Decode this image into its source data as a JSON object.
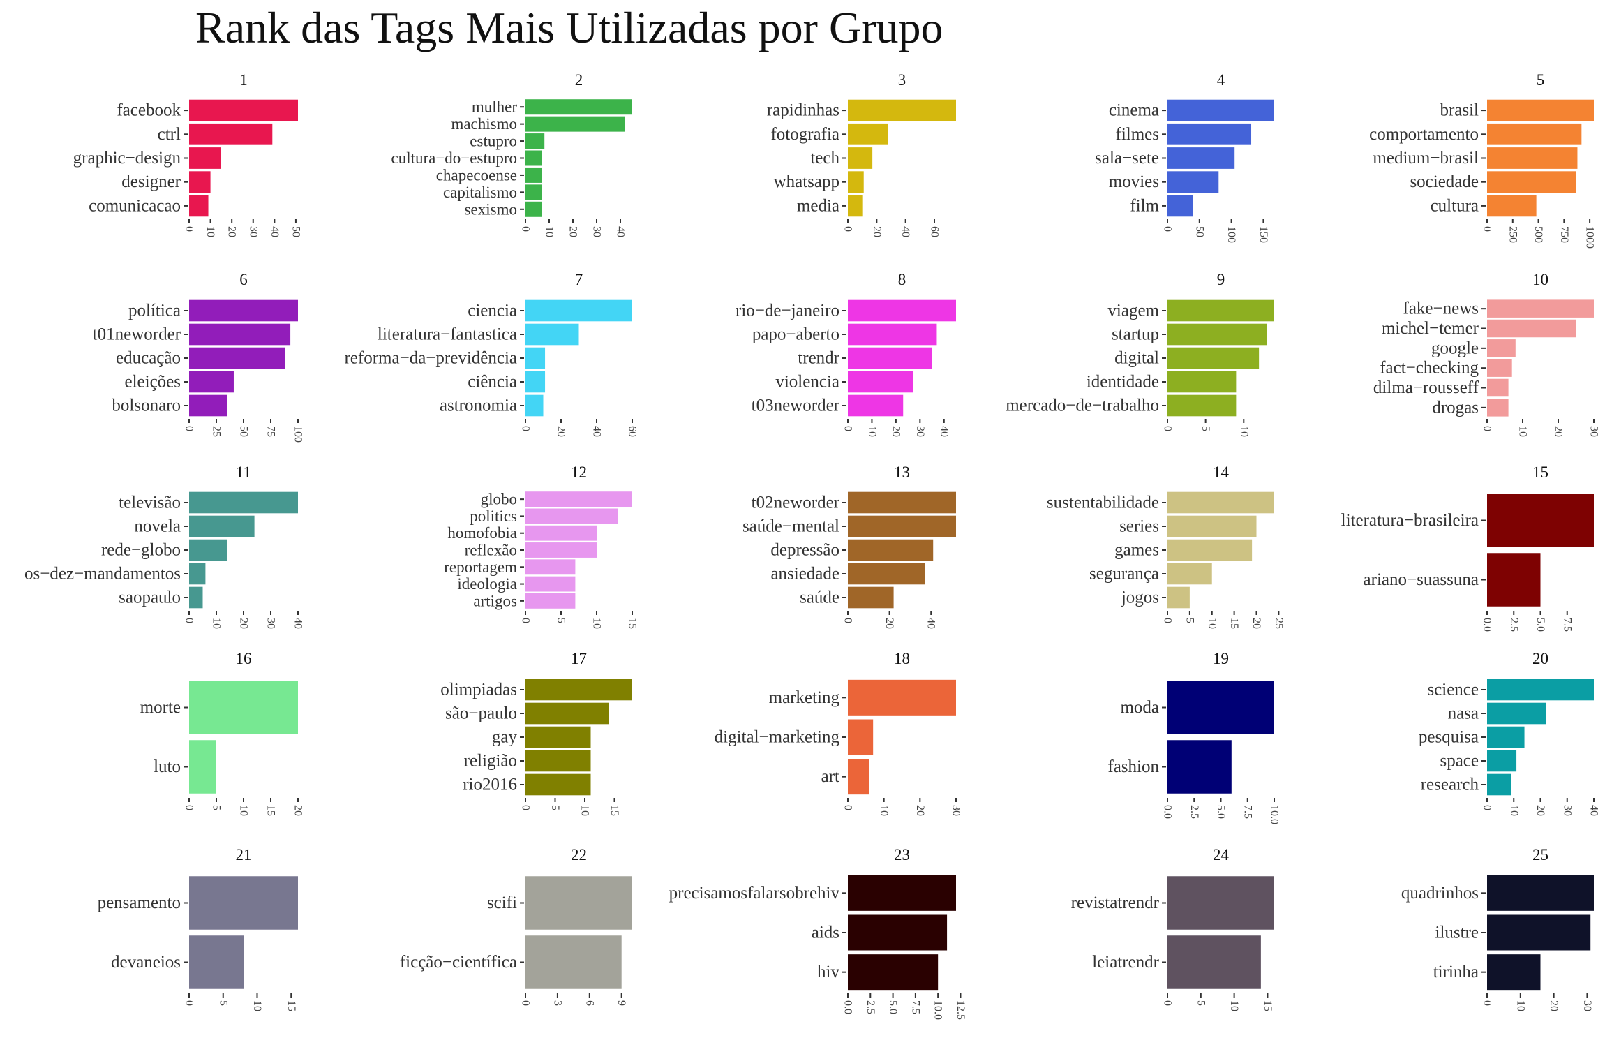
{
  "title": "Rank das Tags Mais Utilizadas por Grupo",
  "chart_data": [
    {
      "type": "bar",
      "orientation": "horizontal",
      "title": "1",
      "color": "#E8174F",
      "categories": [
        "facebook",
        "ctrl",
        "graphic−design",
        "designer",
        "comunicacao"
      ],
      "values": [
        51,
        39,
        15,
        10,
        9
      ],
      "xticks": [
        0,
        10,
        20,
        30,
        40,
        50
      ],
      "xlim": [
        0,
        51
      ]
    },
    {
      "type": "bar",
      "orientation": "horizontal",
      "title": "2",
      "color": "#3CB34A",
      "categories": [
        "mulher",
        "machismo",
        "estupro",
        "cultura−do−estupro",
        "chapecoense",
        "capitalismo",
        "sexismo"
      ],
      "values": [
        45,
        42,
        8,
        7,
        7,
        7,
        7
      ],
      "xticks": [
        0,
        10,
        20,
        30,
        40
      ],
      "xlim": [
        0,
        45
      ]
    },
    {
      "type": "bar",
      "orientation": "horizontal",
      "title": "3",
      "color": "#D4B80E",
      "categories": [
        "rapidinhas",
        "fotografia",
        "tech",
        "whatsapp",
        "media"
      ],
      "values": [
        75,
        28,
        17,
        11,
        10
      ],
      "xticks": [
        0,
        20,
        40,
        60
      ],
      "xlim": [
        0,
        75
      ]
    },
    {
      "type": "bar",
      "orientation": "horizontal",
      "title": "4",
      "color": "#4463D8",
      "categories": [
        "cinema",
        "filmes",
        "sala−sete",
        "movies",
        "film"
      ],
      "values": [
        167,
        131,
        105,
        80,
        40
      ],
      "xticks": [
        0,
        50,
        100,
        150
      ],
      "xlim": [
        0,
        167
      ]
    },
    {
      "type": "bar",
      "orientation": "horizontal",
      "title": "5",
      "color": "#F48332",
      "categories": [
        "brasil",
        "comportamento",
        "medium−brasil",
        "sociedade",
        "cultura"
      ],
      "values": [
        1040,
        920,
        880,
        870,
        480
      ],
      "xticks": [
        0,
        250,
        500,
        750,
        1000
      ],
      "xlim": [
        0,
        1040
      ]
    },
    {
      "type": "bar",
      "orientation": "horizontal",
      "title": "6",
      "color": "#921DBA",
      "categories": [
        "política",
        "t01neworder",
        "educação",
        "eleições",
        "bolsonaro"
      ],
      "values": [
        100,
        93,
        88,
        41,
        35
      ],
      "xticks": [
        0,
        25,
        50,
        75,
        100
      ],
      "xlim": [
        0,
        100
      ]
    },
    {
      "type": "bar",
      "orientation": "horizontal",
      "title": "7",
      "color": "#43D5F5",
      "categories": [
        "ciencia",
        "literatura−fantastica",
        "reforma−da−previdência",
        "ciência",
        "astronomia"
      ],
      "values": [
        60,
        30,
        11,
        11,
        10
      ],
      "xticks": [
        0,
        20,
        40,
        60
      ],
      "xlim": [
        0,
        60
      ]
    },
    {
      "type": "bar",
      "orientation": "horizontal",
      "title": "8",
      "color": "#EE36E5",
      "categories": [
        "rio−de−janeiro",
        "papo−aberto",
        "trendr",
        "violencia",
        "t03neworder"
      ],
      "values": [
        45,
        37,
        35,
        27,
        23
      ],
      "xticks": [
        0,
        10,
        20,
        30,
        40
      ],
      "xlim": [
        0,
        45
      ]
    },
    {
      "type": "bar",
      "orientation": "horizontal",
      "title": "9",
      "color": "#8DAF21",
      "categories": [
        "viagem",
        "startup",
        "digital",
        "identidade",
        "mercado−de−trabalho"
      ],
      "values": [
        14,
        13,
        12,
        9,
        9
      ],
      "xticks": [
        0,
        5,
        10
      ],
      "xlim": [
        0,
        14
      ]
    },
    {
      "type": "bar",
      "orientation": "horizontal",
      "title": "10",
      "color": "#F29B9B",
      "categories": [
        "fake−news",
        "michel−temer",
        "google",
        "fact−checking",
        "dilma−rousseff",
        "drogas"
      ],
      "values": [
        30,
        25,
        8,
        7,
        6,
        6
      ],
      "xticks": [
        0,
        10,
        20,
        30
      ],
      "xlim": [
        0,
        30
      ]
    },
    {
      "type": "bar",
      "orientation": "horizontal",
      "title": "11",
      "color": "#479890",
      "categories": [
        "televisão",
        "novela",
        "rede−globo",
        "os−dez−mandamentos",
        "saopaulo"
      ],
      "values": [
        40,
        24,
        14,
        6,
        5
      ],
      "xticks": [
        0,
        10,
        20,
        30,
        40
      ],
      "xlim": [
        0,
        40
      ]
    },
    {
      "type": "bar",
      "orientation": "horizontal",
      "title": "12",
      "color": "#E797EF",
      "categories": [
        "globo",
        "politics",
        "homofobia",
        "reflexão",
        "reportagem",
        "ideologia",
        "artigos"
      ],
      "values": [
        15,
        13,
        10,
        10,
        7,
        7,
        7
      ],
      "xticks": [
        0,
        5,
        10,
        15
      ],
      "xlim": [
        0,
        15
      ]
    },
    {
      "type": "bar",
      "orientation": "horizontal",
      "title": "13",
      "color": "#A06628",
      "categories": [
        "t02neworder",
        "saúde−mental",
        "depressão",
        "ansiedade",
        "saúde"
      ],
      "values": [
        52,
        52,
        41,
        37,
        22
      ],
      "xticks": [
        0,
        20,
        40
      ],
      "xlim": [
        0,
        52
      ]
    },
    {
      "type": "bar",
      "orientation": "horizontal",
      "title": "14",
      "color": "#CDC283",
      "categories": [
        "sustentabilidade",
        "series",
        "games",
        "segurança",
        "jogos"
      ],
      "values": [
        24,
        20,
        19,
        10,
        5
      ],
      "xticks": [
        0,
        5,
        10,
        15,
        20,
        25
      ],
      "xlim": [
        0,
        24
      ]
    },
    {
      "type": "bar",
      "orientation": "horizontal",
      "title": "15",
      "color": "#7E0202",
      "categories": [
        "literatura−brasileira",
        "ariano−suassuna"
      ],
      "values": [
        10,
        5
      ],
      "xticks": [
        0.0,
        2.5,
        5.0,
        7.5
      ],
      "xtick_labels": [
        "0.0",
        "2.5",
        "5.0",
        "7.5"
      ],
      "xlim": [
        0,
        10
      ]
    },
    {
      "type": "bar",
      "orientation": "horizontal",
      "title": "16",
      "color": "#77E892",
      "categories": [
        "morte",
        "luto"
      ],
      "values": [
        20,
        5
      ],
      "xticks": [
        0,
        5,
        10,
        15,
        20
      ],
      "xlim": [
        0,
        20
      ]
    },
    {
      "type": "bar",
      "orientation": "horizontal",
      "title": "17",
      "color": "#808000",
      "categories": [
        "olimpiadas",
        "são−paulo",
        "gay",
        "religião",
        "rio2016"
      ],
      "values": [
        18,
        14,
        11,
        11,
        11
      ],
      "xticks": [
        0,
        5,
        10,
        15
      ],
      "xlim": [
        0,
        18
      ]
    },
    {
      "type": "bar",
      "orientation": "horizontal",
      "title": "18",
      "color": "#EB6539",
      "categories": [
        "marketing",
        "digital−marketing",
        "art"
      ],
      "values": [
        30,
        7,
        6
      ],
      "xticks": [
        0,
        10,
        20,
        30
      ],
      "xlim": [
        0,
        30
      ]
    },
    {
      "type": "bar",
      "orientation": "horizontal",
      "title": "19",
      "color": "#000075",
      "categories": [
        "moda",
        "fashion"
      ],
      "values": [
        10,
        6
      ],
      "xticks": [
        0.0,
        2.5,
        5.0,
        7.5,
        10.0
      ],
      "xtick_labels": [
        "0.0",
        "2.5",
        "5.0",
        "7.5",
        "10.0"
      ],
      "xlim": [
        0,
        10
      ]
    },
    {
      "type": "bar",
      "orientation": "horizontal",
      "title": "20",
      "color": "#0B9EA4",
      "categories": [
        "science",
        "nasa",
        "pesquisa",
        "space",
        "research"
      ],
      "values": [
        40,
        22,
        14,
        11,
        9
      ],
      "xticks": [
        0,
        10,
        20,
        30,
        40
      ],
      "xlim": [
        0,
        40
      ]
    },
    {
      "type": "bar",
      "orientation": "horizontal",
      "title": "21",
      "color": "#787790",
      "categories": [
        "pensamento",
        "devaneios"
      ],
      "values": [
        16,
        8
      ],
      "xticks": [
        0,
        5,
        10,
        15
      ],
      "xlim": [
        0,
        16
      ]
    },
    {
      "type": "bar",
      "orientation": "horizontal",
      "title": "22",
      "color": "#A3A39A",
      "categories": [
        "scifi",
        "ficção−científica"
      ],
      "values": [
        10,
        9
      ],
      "xticks": [
        0,
        3,
        6,
        9
      ],
      "xlim": [
        0,
        10
      ]
    },
    {
      "type": "bar",
      "orientation": "horizontal",
      "title": "23",
      "color": "#2A0101",
      "categories": [
        "precisamosfalarsobrehiv",
        "aids",
        "hiv"
      ],
      "values": [
        12,
        11,
        10
      ],
      "xticks": [
        0.0,
        2.5,
        5.0,
        7.5,
        10.0,
        12.5
      ],
      "xtick_labels": [
        "0.0",
        "2.5",
        "5.0",
        "7.5",
        "10.0",
        "12.5"
      ],
      "xlim": [
        0,
        12
      ]
    },
    {
      "type": "bar",
      "orientation": "horizontal",
      "title": "24",
      "color": "#5F5260",
      "categories": [
        "revistatrendr",
        "leiatrendr"
      ],
      "values": [
        16,
        14
      ],
      "xticks": [
        0,
        5,
        10,
        15
      ],
      "xlim": [
        0,
        16
      ]
    },
    {
      "type": "bar",
      "orientation": "horizontal",
      "title": "25",
      "color": "#0F1229",
      "categories": [
        "quadrinhos",
        "ilustre",
        "tirinha"
      ],
      "values": [
        32,
        31,
        16
      ],
      "xticks": [
        0,
        10,
        20,
        30
      ],
      "xlim": [
        0,
        32
      ]
    }
  ]
}
